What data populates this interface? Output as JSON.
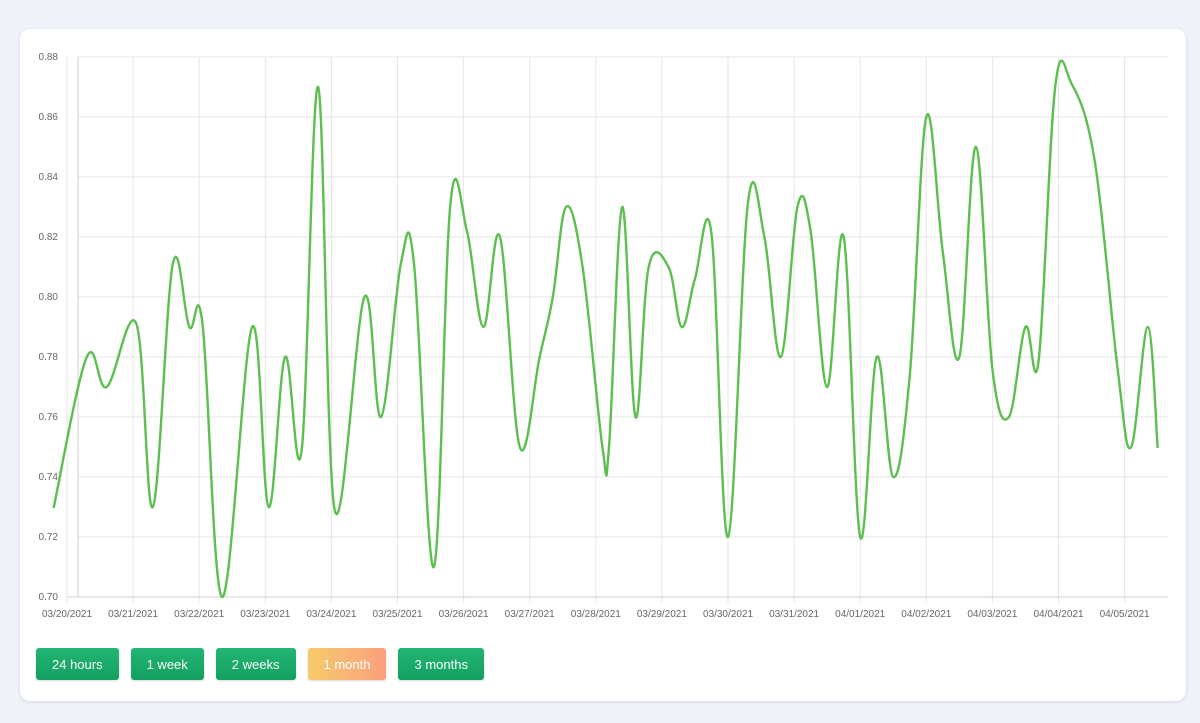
{
  "chart_data": {
    "type": "line",
    "x_labels": [
      "03/20/2021",
      "03/21/2021",
      "03/22/2021",
      "03/23/2021",
      "03/24/2021",
      "03/25/2021",
      "03/26/2021",
      "03/27/2021",
      "03/28/2021",
      "03/29/2021",
      "03/30/2021",
      "03/31/2021",
      "04/01/2021",
      "04/02/2021",
      "04/03/2021",
      "04/04/2021",
      "04/05/2021"
    ],
    "y_ticks": [
      "0.88",
      "0.86",
      "0.84",
      "0.82",
      "0.80",
      "0.78",
      "0.76",
      "0.74",
      "0.72",
      "0.70"
    ],
    "ylim": [
      0.7,
      0.88
    ],
    "xlim_days": [
      -0.2,
      16.5
    ],
    "grid": true,
    "series": [
      {
        "color": "#5cbf50",
        "points": [
          [
            -0.2,
            0.73
          ],
          [
            0.3,
            0.78
          ],
          [
            0.6,
            0.77
          ],
          [
            1.05,
            0.791
          ],
          [
            1.3,
            0.73
          ],
          [
            1.6,
            0.811
          ],
          [
            1.85,
            0.79
          ],
          [
            2.05,
            0.791
          ],
          [
            2.35,
            0.7
          ],
          [
            2.8,
            0.79
          ],
          [
            3.05,
            0.73
          ],
          [
            3.3,
            0.78
          ],
          [
            3.55,
            0.749
          ],
          [
            3.8,
            0.87
          ],
          [
            4.05,
            0.729
          ],
          [
            4.5,
            0.8
          ],
          [
            4.75,
            0.76
          ],
          [
            5.05,
            0.811
          ],
          [
            5.25,
            0.811
          ],
          [
            5.55,
            0.71
          ],
          [
            5.8,
            0.831
          ],
          [
            6.05,
            0.822
          ],
          [
            6.3,
            0.79
          ],
          [
            6.55,
            0.82
          ],
          [
            6.85,
            0.75
          ],
          [
            7.15,
            0.78
          ],
          [
            7.35,
            0.8
          ],
          [
            7.55,
            0.83
          ],
          [
            7.8,
            0.81
          ],
          [
            8.1,
            0.75
          ],
          [
            8.2,
            0.75
          ],
          [
            8.4,
            0.83
          ],
          [
            8.6,
            0.76
          ],
          [
            8.8,
            0.81
          ],
          [
            9.1,
            0.81
          ],
          [
            9.3,
            0.79
          ],
          [
            9.5,
            0.806
          ],
          [
            9.75,
            0.821
          ],
          [
            10.0,
            0.72
          ],
          [
            10.3,
            0.831
          ],
          [
            10.55,
            0.82
          ],
          [
            10.8,
            0.78
          ],
          [
            11.05,
            0.83
          ],
          [
            11.25,
            0.822
          ],
          [
            11.5,
            0.77
          ],
          [
            11.75,
            0.82
          ],
          [
            12.0,
            0.72
          ],
          [
            12.25,
            0.78
          ],
          [
            12.5,
            0.74
          ],
          [
            12.75,
            0.774
          ],
          [
            13.0,
            0.86
          ],
          [
            13.25,
            0.815
          ],
          [
            13.5,
            0.78
          ],
          [
            13.75,
            0.85
          ],
          [
            14.0,
            0.776
          ],
          [
            14.25,
            0.76
          ],
          [
            14.5,
            0.79
          ],
          [
            14.7,
            0.779
          ],
          [
            14.95,
            0.87
          ],
          [
            15.2,
            0.871
          ],
          [
            15.55,
            0.845
          ],
          [
            15.9,
            0.775
          ],
          [
            16.1,
            0.75
          ],
          [
            16.35,
            0.79
          ],
          [
            16.5,
            0.75
          ]
        ]
      }
    ]
  },
  "range_buttons": [
    {
      "label": "24 hours",
      "active": false
    },
    {
      "label": "1 week",
      "active": false
    },
    {
      "label": "2 weeks",
      "active": false
    },
    {
      "label": "1 month",
      "active": true
    },
    {
      "label": "3 months",
      "active": false
    }
  ]
}
